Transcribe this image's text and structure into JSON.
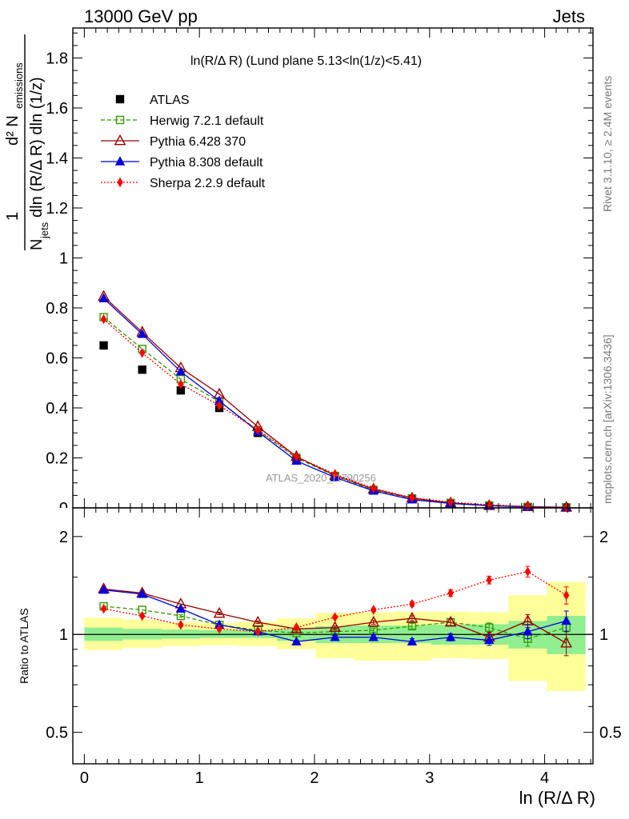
{
  "header": {
    "left": "13000 GeV pp",
    "right": "Jets"
  },
  "side_labels": {
    "rivet": "Rivet 3.1.10, ≥ 2.4M events",
    "mcplots": "mcplots.cern.ch [arXiv:1306.3436]"
  },
  "watermark": "ATLAS_2020_I1790256",
  "chart_data": [
    {
      "type": "line",
      "panel": "main",
      "title": "ln(R/Δ R) (Lund plane 5.13<ln(1/z)<5.41)",
      "xlabel": "ln (R/Δ R)",
      "ylabel": "1/N_jets d²N_emissions / dln(R/Δ R) dln(1/z)",
      "xlim": [
        -0.1,
        4.42
      ],
      "ylim": [
        0,
        1.92
      ],
      "yticks": [
        "0.2",
        "0.4",
        "0.6",
        "0.8",
        "1",
        "1.2",
        "1.4",
        "1.6",
        "1.8"
      ],
      "legend_position": "top-left",
      "x": [
        0.168,
        0.503,
        0.838,
        1.173,
        1.508,
        1.843,
        2.178,
        2.513,
        2.848,
        3.183,
        3.518,
        3.853,
        4.188
      ],
      "series": [
        {
          "name": "ATLAS",
          "color": "#000000",
          "marker": "square-filled",
          "line": "none",
          "values": [
            0.65,
            0.553,
            0.47,
            0.4,
            0.3,
            0.198,
            0.125,
            0.07,
            0.035,
            0.018,
            0.009,
            0.004,
            0.002
          ]
        },
        {
          "name": "Herwig 7.2.1 default",
          "color": "#339900",
          "marker": "square-open",
          "line": "dashed",
          "values": [
            0.763,
            0.636,
            0.515,
            0.425,
            0.31,
            0.2,
            0.128,
            0.072,
            0.038,
            0.02,
            0.0095,
            0.0039,
            0.0021
          ]
        },
        {
          "name": "Pythia 6.428 370",
          "color": "#990000",
          "marker": "triangle-open",
          "line": "solid",
          "values": [
            0.846,
            0.703,
            0.56,
            0.455,
            0.325,
            0.205,
            0.13,
            0.075,
            0.039,
            0.02,
            0.009,
            0.0044,
            0.0019
          ]
        },
        {
          "name": "Pythia 8.308 default",
          "color": "#0000dd",
          "marker": "triangle-filled",
          "line": "solid",
          "values": [
            0.838,
            0.695,
            0.545,
            0.428,
            0.305,
            0.188,
            0.122,
            0.068,
            0.033,
            0.0175,
            0.0087,
            0.0042,
            0.0022
          ]
        },
        {
          "name": "Sherpa 2.2.9 default",
          "color": "#ff0000",
          "marker": "diamond-filled",
          "line": "dotted",
          "values": [
            0.755,
            0.62,
            0.495,
            0.41,
            0.312,
            0.205,
            0.135,
            0.078,
            0.041,
            0.023,
            0.0122,
            0.0058,
            0.0024
          ]
        }
      ]
    },
    {
      "type": "line",
      "panel": "ratio",
      "xlabel": "ln (R/Δ R)",
      "ylabel": "Ratio to ATLAS",
      "xlim": [
        -0.1,
        4.42
      ],
      "ylim": [
        0.4,
        2.45
      ],
      "log_y": true,
      "xticks": [
        "0",
        "1",
        "2",
        "3",
        "4"
      ],
      "yticks": [
        "0.5",
        "1",
        "2"
      ],
      "x": [
        0.168,
        0.503,
        0.838,
        1.173,
        1.508,
        1.843,
        2.178,
        2.513,
        2.848,
        3.183,
        3.518,
        3.853,
        4.188
      ],
      "bin_edges": [
        0,
        0.335,
        0.67,
        1.005,
        1.34,
        1.675,
        2.01,
        2.345,
        2.68,
        3.015,
        3.35,
        3.685,
        4.02,
        4.355
      ],
      "band_stat": {
        "color": "#90ee90",
        "low": [
          0.955,
          0.965,
          0.97,
          0.975,
          0.975,
          0.955,
          0.94,
          0.94,
          0.94,
          0.93,
          0.93,
          0.905,
          0.87
        ],
        "high": [
          1.05,
          1.04,
          1.035,
          1.03,
          1.03,
          1.04,
          1.06,
          1.065,
          1.065,
          1.07,
          1.075,
          1.1,
          1.14
        ]
      },
      "band_total": {
        "color": "#ffff99",
        "low": [
          0.895,
          0.91,
          0.92,
          0.925,
          0.92,
          0.9,
          0.845,
          0.83,
          0.83,
          0.845,
          0.84,
          0.72,
          0.67
        ],
        "high": [
          1.125,
          1.11,
          1.09,
          1.085,
          1.095,
          1.12,
          1.165,
          1.17,
          1.175,
          1.175,
          1.17,
          1.32,
          1.45
        ]
      },
      "series": [
        {
          "name": "Herwig 7.2.1 default",
          "color": "#339900",
          "marker": "square-open",
          "line": "dashed",
          "values": [
            1.22,
            1.19,
            1.14,
            1.07,
            1.03,
            1.01,
            1.02,
            1.03,
            1.06,
            1.09,
            1.05,
            0.97,
            1.05
          ],
          "errors": [
            0.01,
            0.01,
            0.01,
            0.01,
            0.01,
            0.01,
            0.012,
            0.015,
            0.02,
            0.025,
            0.035,
            0.05,
            0.08
          ]
        },
        {
          "name": "Pythia 6.428 370",
          "color": "#990000",
          "marker": "triangle-open",
          "line": "solid",
          "values": [
            1.38,
            1.34,
            1.24,
            1.16,
            1.09,
            1.04,
            1.05,
            1.09,
            1.12,
            1.09,
            0.98,
            1.1,
            0.94
          ],
          "errors": [
            0.01,
            0.01,
            0.01,
            0.01,
            0.01,
            0.01,
            0.012,
            0.015,
            0.02,
            0.025,
            0.035,
            0.05,
            0.08
          ]
        },
        {
          "name": "Pythia 8.308 default",
          "color": "#0000dd",
          "marker": "triangle-filled",
          "line": "solid",
          "values": [
            1.37,
            1.33,
            1.2,
            1.07,
            1.02,
            0.95,
            0.98,
            0.98,
            0.95,
            0.98,
            0.96,
            1.02,
            1.1
          ],
          "errors": [
            0.01,
            0.01,
            0.01,
            0.01,
            0.01,
            0.01,
            0.012,
            0.015,
            0.02,
            0.025,
            0.035,
            0.05,
            0.08
          ]
        },
        {
          "name": "Sherpa 2.2.9 default",
          "color": "#ff0000",
          "marker": "diamond-filled",
          "line": "dotted",
          "values": [
            1.2,
            1.14,
            1.07,
            1.04,
            1.02,
            1.05,
            1.13,
            1.19,
            1.24,
            1.34,
            1.47,
            1.56,
            1.32
          ],
          "errors": [
            0.01,
            0.01,
            0.01,
            0.01,
            0.01,
            0.01,
            0.012,
            0.015,
            0.02,
            0.03,
            0.04,
            0.06,
            0.08
          ]
        }
      ]
    }
  ]
}
